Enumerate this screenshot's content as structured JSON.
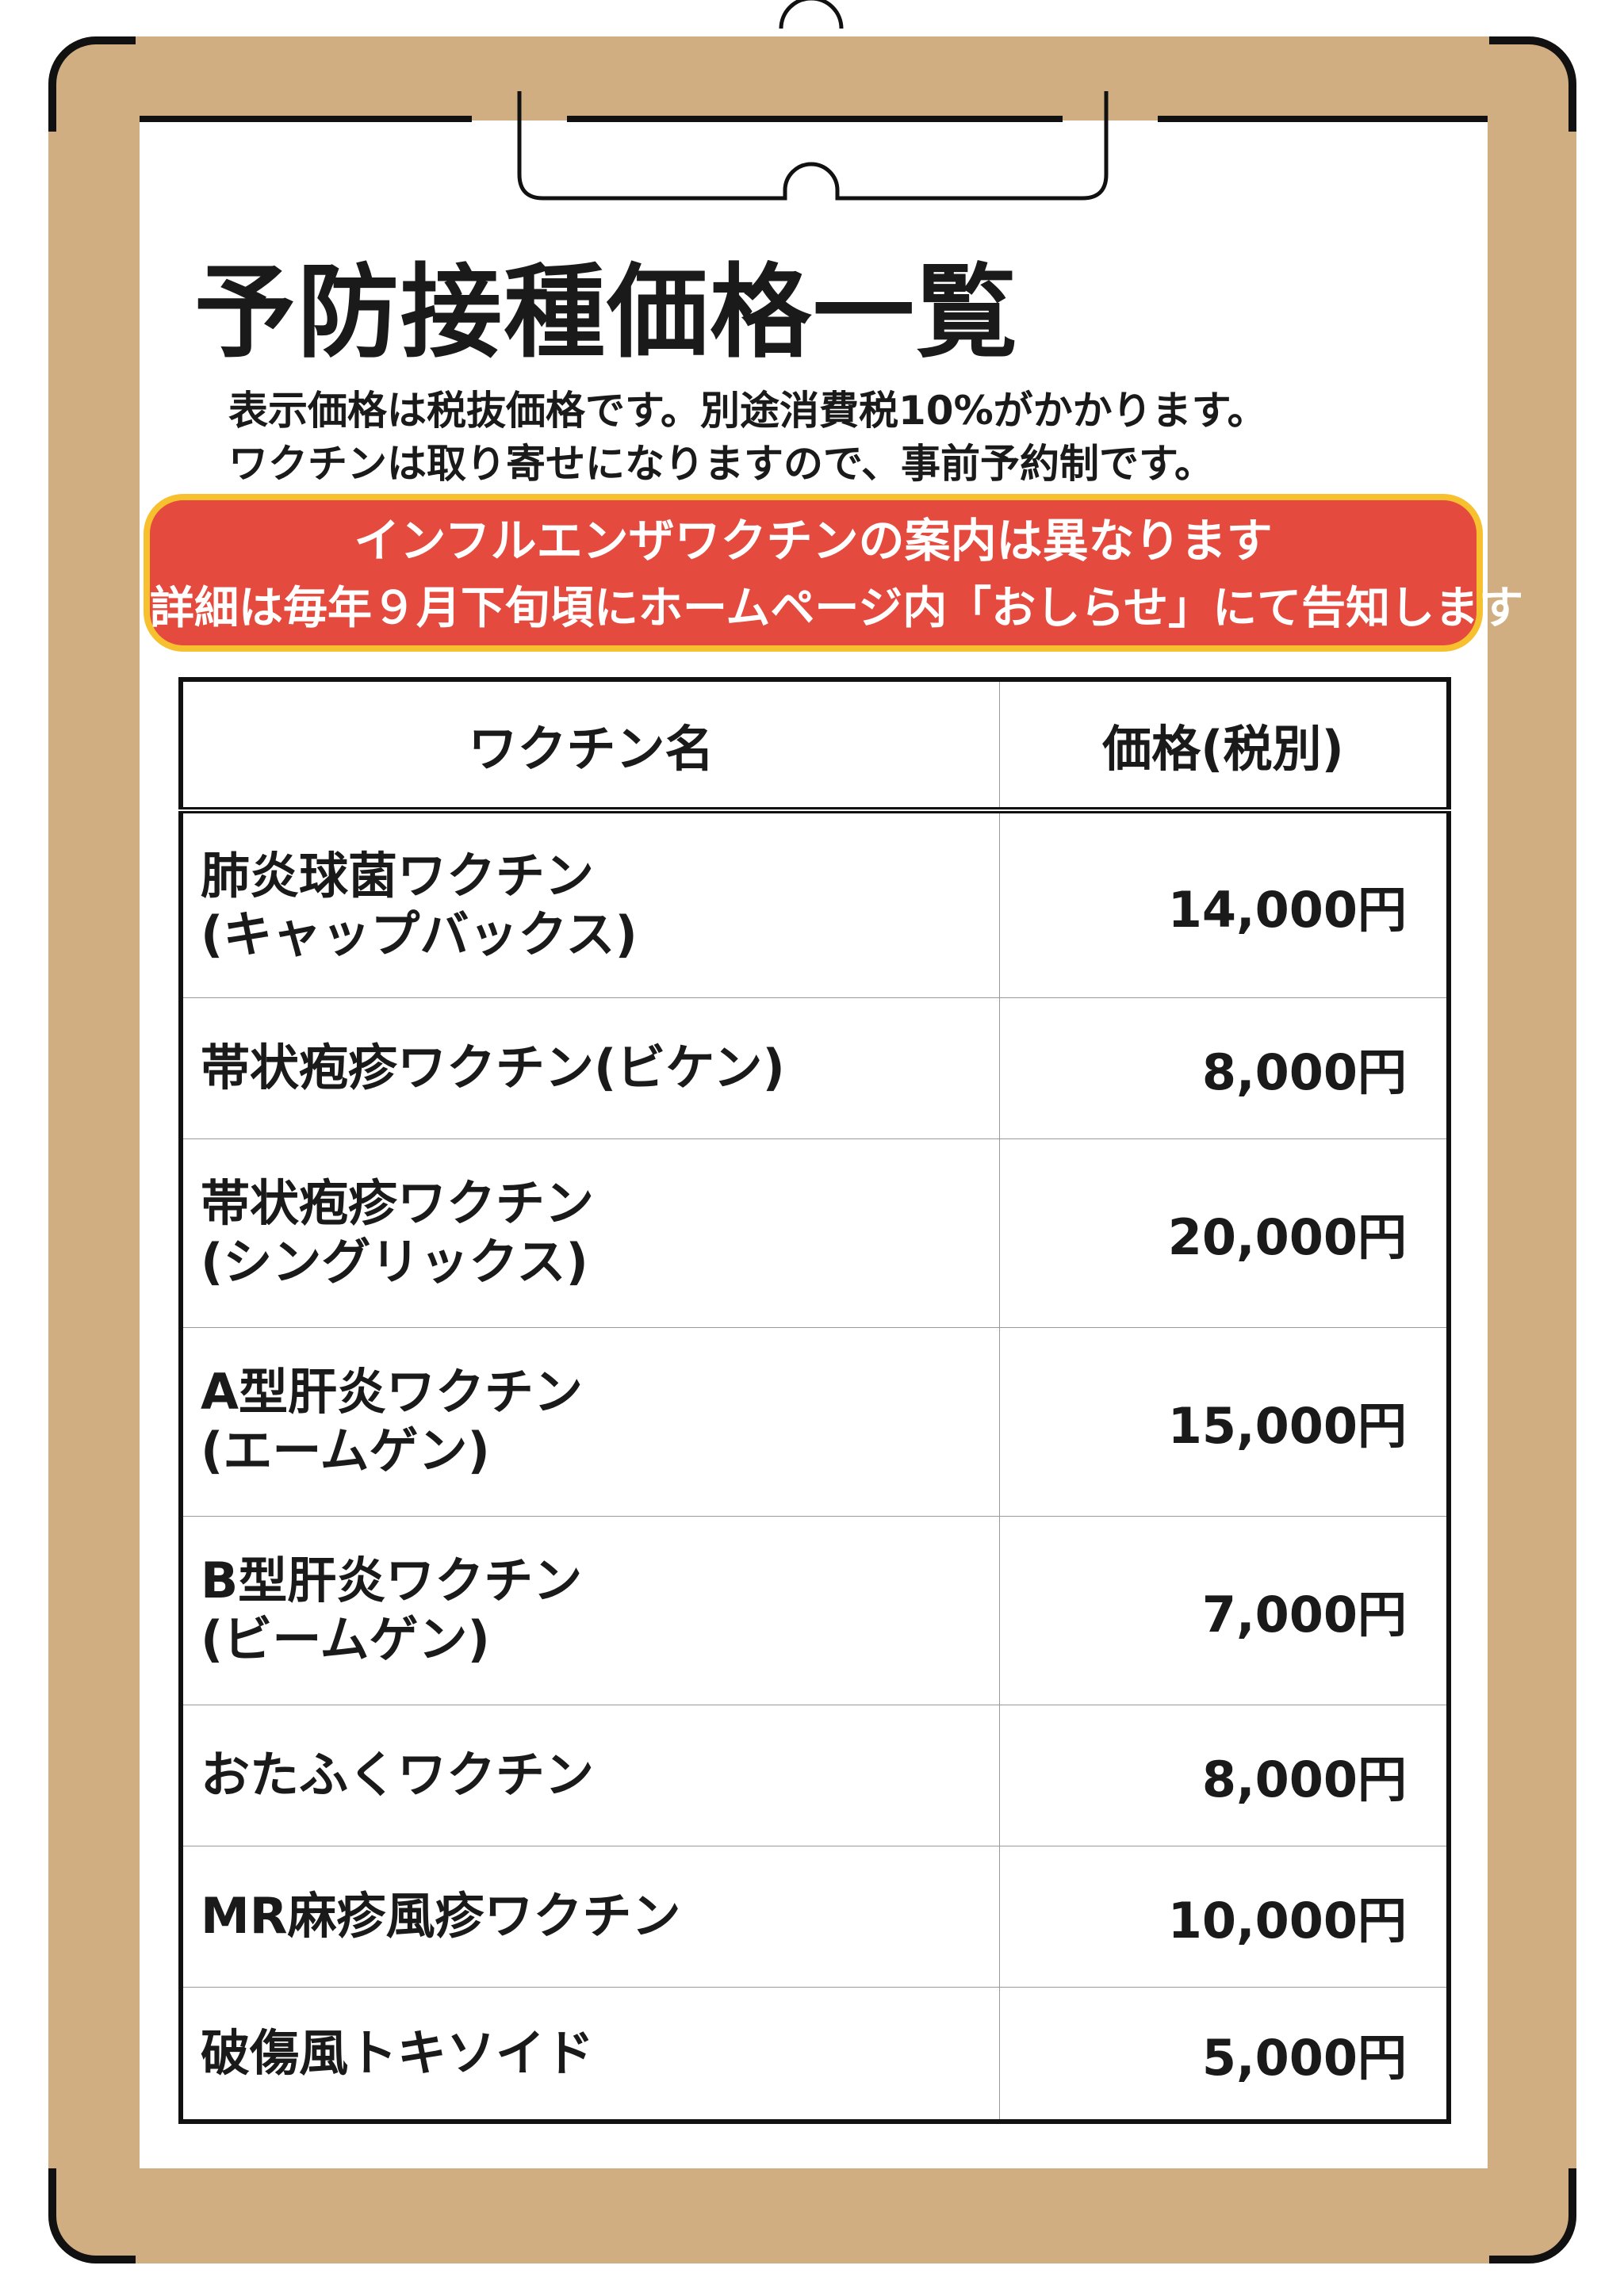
{
  "title": "予防接種価格一覧",
  "notes": [
    "表示価格は税抜価格です。別途消費税10%がかかります。",
    "ワクチンは取り寄せになりますので、事前予約制です。"
  ],
  "banner": {
    "line1": "インフルエンザワクチンの案内は異なります",
    "line2": "詳細は毎年９月下旬頃にホームページ内「おしらせ」にて告知します",
    "bg_color": "#e44a3e",
    "border_color": "#f6c02f"
  },
  "board_color": "#d1ae82",
  "table": {
    "headers": [
      "ワクチン名",
      "価格(税別)"
    ],
    "rows": [
      {
        "name": "肺炎球菌ワクチン",
        "sub": "(キャップバックス)",
        "price": "14,000円"
      },
      {
        "name": "帯状疱疹ワクチン(ビケン)",
        "sub": "",
        "price": "8,000円"
      },
      {
        "name": "帯状疱疹ワクチン",
        "sub": "(シングリックス)",
        "price": "20,000円"
      },
      {
        "name": "A型肝炎ワクチン",
        "sub": "(エームゲン)",
        "price": "15,000円"
      },
      {
        "name": "B型肝炎ワクチン",
        "sub": "(ビームゲン)",
        "price": "7,000円"
      },
      {
        "name": "おたふくワクチン",
        "sub": "",
        "price": "8,000円"
      },
      {
        "name": "MR麻疹風疹ワクチン",
        "sub": "",
        "price": "10,000円"
      },
      {
        "name": "破傷風トキソイド",
        "sub": "",
        "price": "5,000円"
      }
    ]
  }
}
